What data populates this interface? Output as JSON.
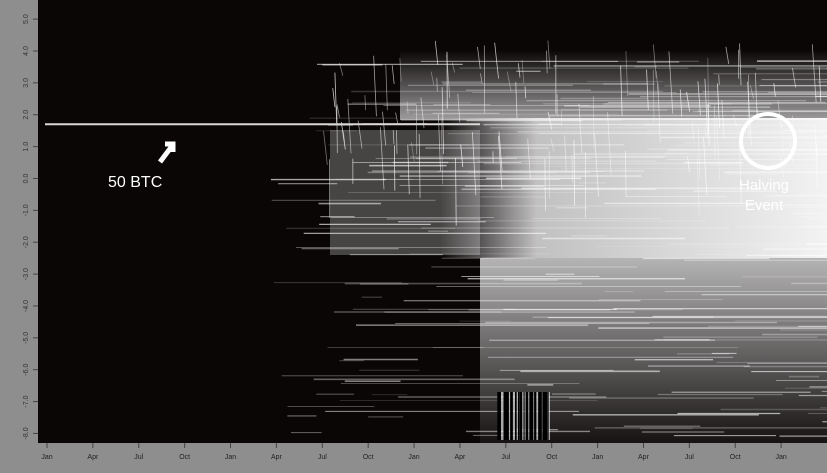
{
  "chart_data": {
    "type": "density",
    "categories": [
      "Jan",
      "Apr",
      "Jul",
      "Oct",
      "Jan",
      "Apr",
      "Jul",
      "Oct",
      "Jan",
      "Apr",
      "Jul",
      "Oct",
      "Jan",
      "Apr",
      "Jul",
      "Oct",
      "Jan"
    ],
    "ylim": [
      -8.3,
      5.6
    ],
    "yticks": [
      {
        "value": 5,
        "label": "5.0"
      },
      {
        "value": 4,
        "label": "4.0"
      },
      {
        "value": 3,
        "label": "3.0"
      },
      {
        "value": 2,
        "label": "2.0"
      },
      {
        "value": 1,
        "label": "1.0"
      },
      {
        "value": 0,
        "label": "0.0"
      },
      {
        "value": -1,
        "label": "-1.0"
      },
      {
        "value": -2,
        "label": "-2.0"
      },
      {
        "value": -3,
        "label": "-3.0"
      },
      {
        "value": -4,
        "label": "-4.0"
      },
      {
        "value": -5,
        "label": "-5.0"
      },
      {
        "value": -6,
        "label": "-6.0"
      },
      {
        "value": -7,
        "label": "-7.0"
      },
      {
        "value": -8,
        "label": "-8.0"
      }
    ],
    "reference_line": {
      "label": "50 BTC",
      "value": 1.7,
      "color": "#d8d8d8"
    },
    "highlight": {
      "label": "Halving Event",
      "color": "#ffffff"
    }
  }
}
